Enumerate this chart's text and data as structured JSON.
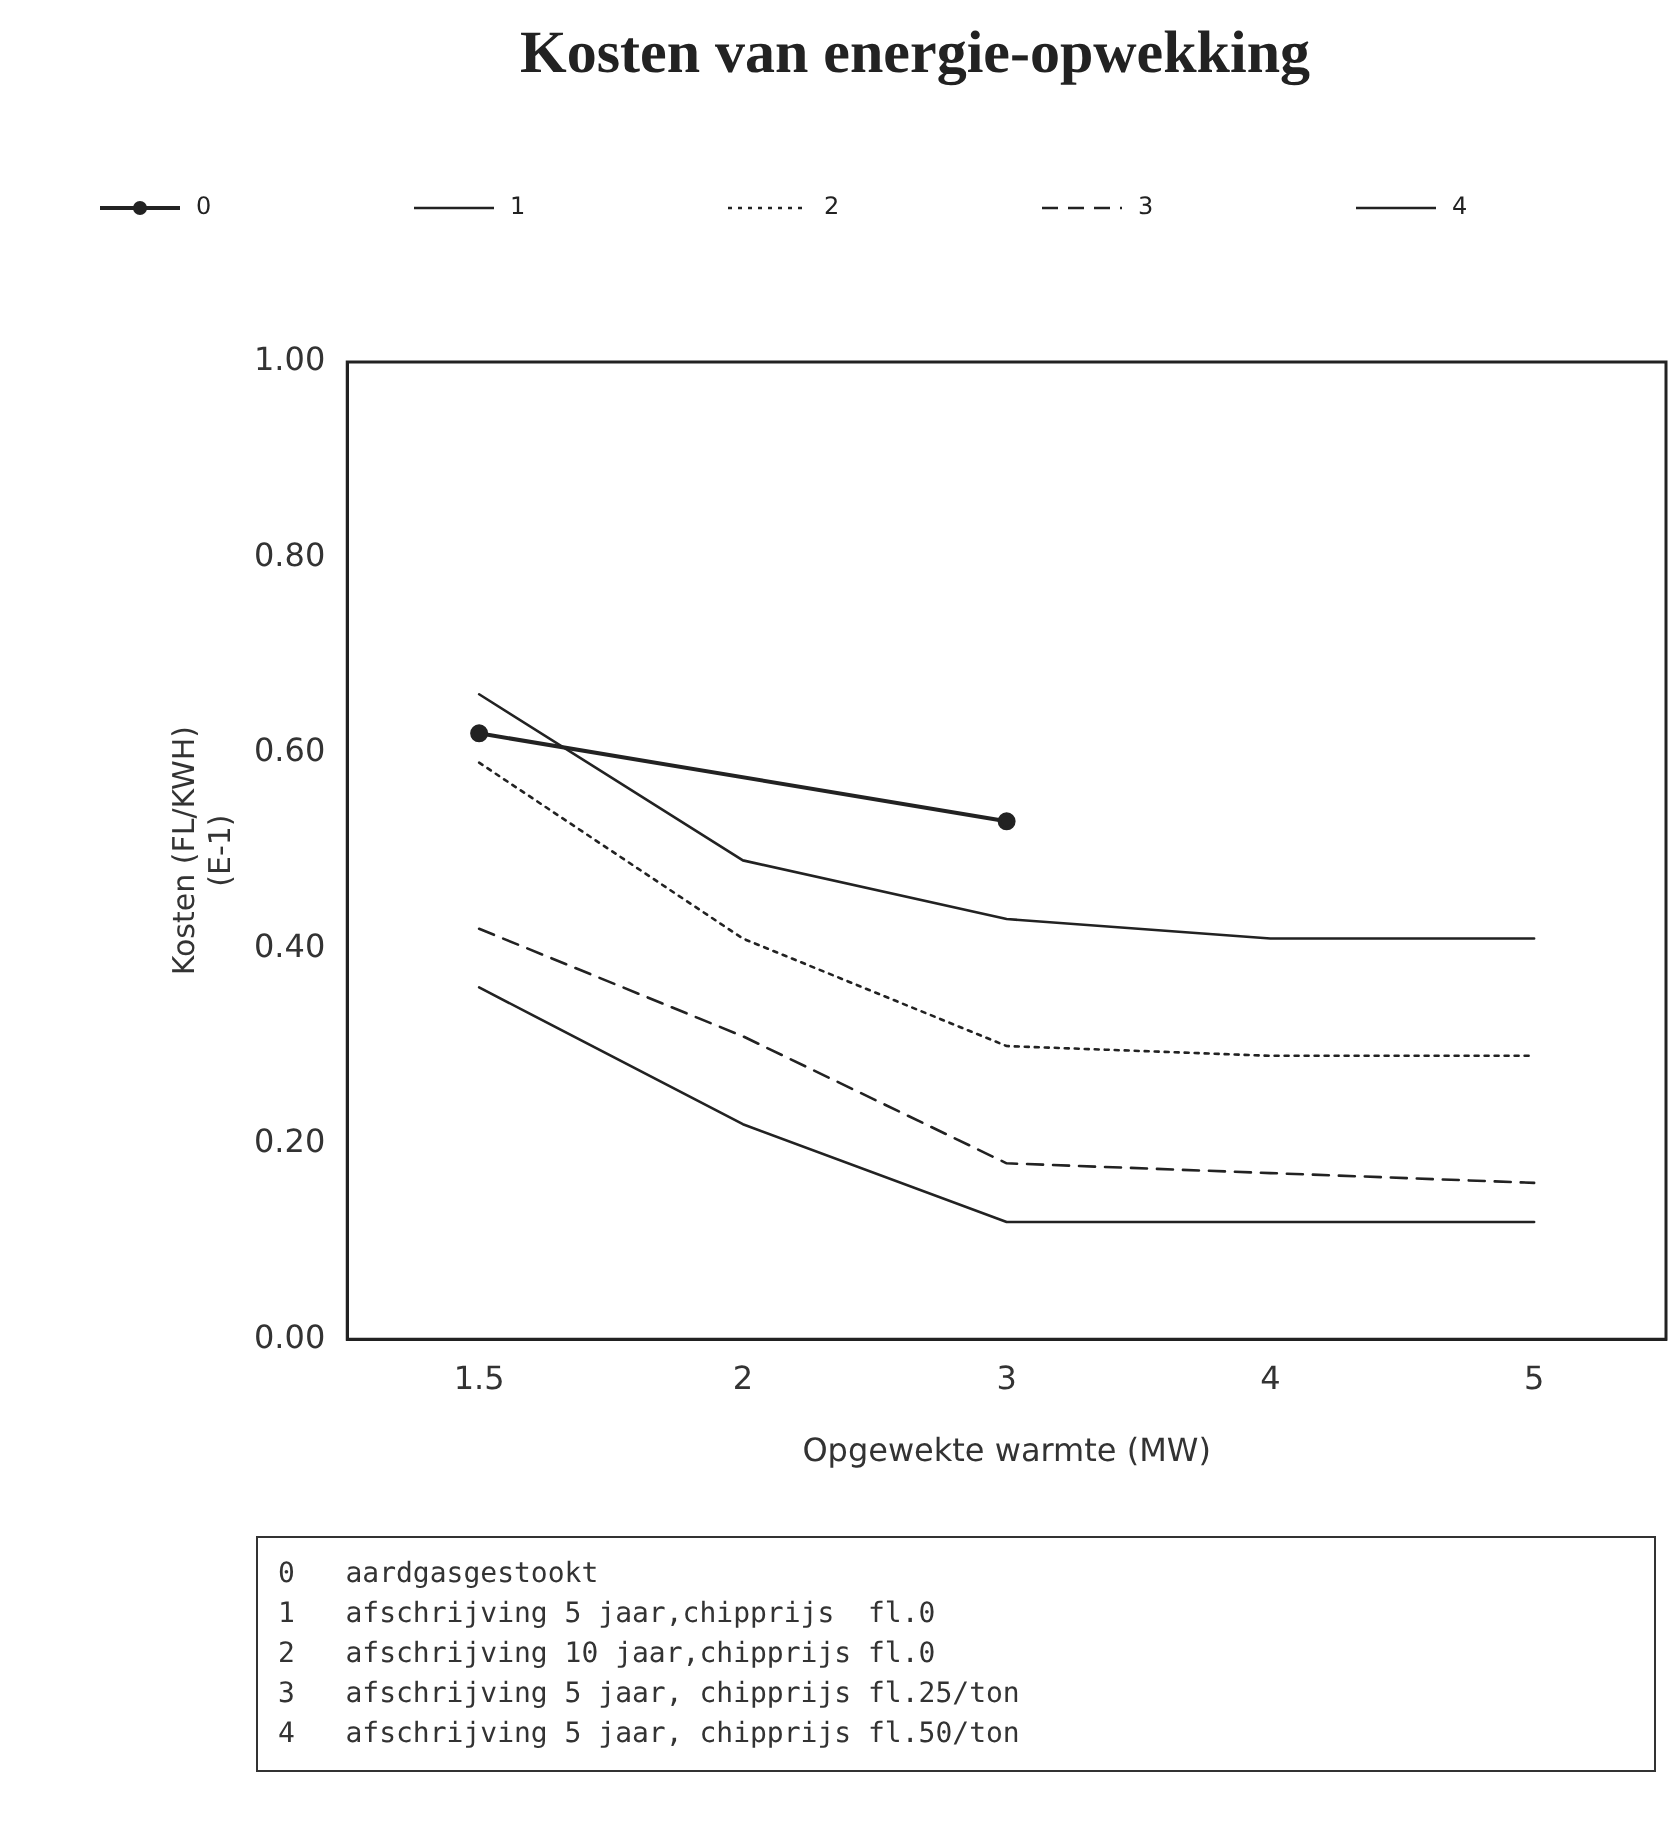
{
  "chart_data": {
    "type": "line",
    "title": "Kosten van energie-opwekking",
    "xlabel": "Opgewekte warmte (MW)",
    "ylabel": "Kosten (FL/KWH)\n(E-1)",
    "categories": [
      "1.5",
      "2",
      "3",
      "4",
      "5"
    ],
    "series": [
      {
        "name": "0",
        "color": "#222222",
        "values": [
          0.62,
          null,
          0.53,
          null,
          null
        ],
        "marker": "circle",
        "line_style": "solid"
      },
      {
        "name": "1",
        "color": "#222222",
        "values": [
          0.66,
          0.49,
          0.43,
          0.41,
          0.41
        ],
        "marker": "none",
        "line_style": "solid"
      },
      {
        "name": "2",
        "color": "#222222",
        "values": [
          0.59,
          0.41,
          0.3,
          0.29,
          0.29
        ],
        "marker": "none",
        "line_style": "dotted"
      },
      {
        "name": "3",
        "color": "#222222",
        "values": [
          0.42,
          0.31,
          0.18,
          0.17,
          0.16
        ],
        "marker": "none",
        "line_style": "dashed"
      },
      {
        "name": "4",
        "color": "#222222",
        "values": [
          0.36,
          0.22,
          0.12,
          0.12,
          0.12
        ],
        "marker": "none",
        "line_style": "solid"
      }
    ],
    "ylim": [
      0,
      1
    ],
    "yticks": [
      {
        "value": 0,
        "label": "0.00"
      },
      {
        "value": 0.2,
        "label": "0.20"
      },
      {
        "value": 0.4,
        "label": "0.40"
      },
      {
        "value": 0.6,
        "label": "0.60"
      },
      {
        "value": 0.8,
        "label": "0.80"
      },
      {
        "value": 1,
        "label": "1.00"
      }
    ],
    "grid": false,
    "legend": "top",
    "annotations": [
      "0   aardgasgestookt",
      "1   afschrijving 5 jaar,chipprijs  fl.0",
      "2   afschrijving 10 jaar,chipprijs fl.0",
      "3   afschrijving 5 jaar, chipprijs fl.25/ton",
      "4   afschrijving 5 jaar, chipprijs fl.50/ton"
    ]
  }
}
